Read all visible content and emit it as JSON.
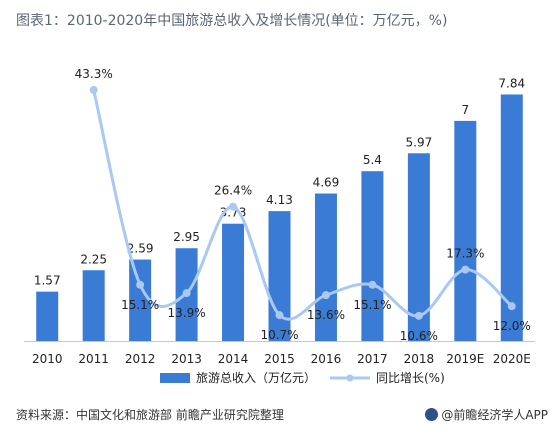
{
  "title": "图表1：2010-2020年中国旅游总收入及增长情况(单位：万亿元，%)",
  "source": "资料来源：中国文化和旅游部 前瞻产业研究院整理",
  "logo_text": "@前瞻经济学人APP",
  "colors": {
    "bar": "#3a7bd5",
    "line": "#a9c8f2",
    "line_marker": "#a9c8f2"
  },
  "chart_data": {
    "type": "bar",
    "categories": [
      "2010",
      "2011",
      "2012",
      "2013",
      "2014",
      "2015",
      "2016",
      "2017",
      "2018",
      "2019E",
      "2020E"
    ],
    "series": [
      {
        "name": "旅游总收入（万亿元）",
        "type": "bar",
        "values": [
          1.57,
          2.25,
          2.59,
          2.95,
          3.73,
          4.13,
          4.69,
          5.4,
          5.97,
          7,
          7.84
        ],
        "labels": [
          "1.57",
          "2.25",
          "2.59",
          "2.95",
          "3.73",
          "4.13",
          "4.69",
          "5.4",
          "5.97",
          "7",
          "7.84"
        ]
      },
      {
        "name": "同比增长(%)",
        "type": "line",
        "axis": "secondary",
        "values": [
          null,
          43.3,
          15.1,
          13.9,
          26.4,
          10.7,
          13.6,
          15.1,
          10.6,
          17.3,
          12.0
        ],
        "labels": [
          "",
          "43.3%",
          "15.1%",
          "13.9%",
          "26.4%",
          "10.7%",
          "13.6%",
          "15.1%",
          "10.6%",
          "17.3%",
          "12.0%"
        ]
      }
    ],
    "ylim": [
      0,
      9
    ],
    "y2lim": [
      0,
      50
    ],
    "legend": "bottom",
    "grid": false
  }
}
